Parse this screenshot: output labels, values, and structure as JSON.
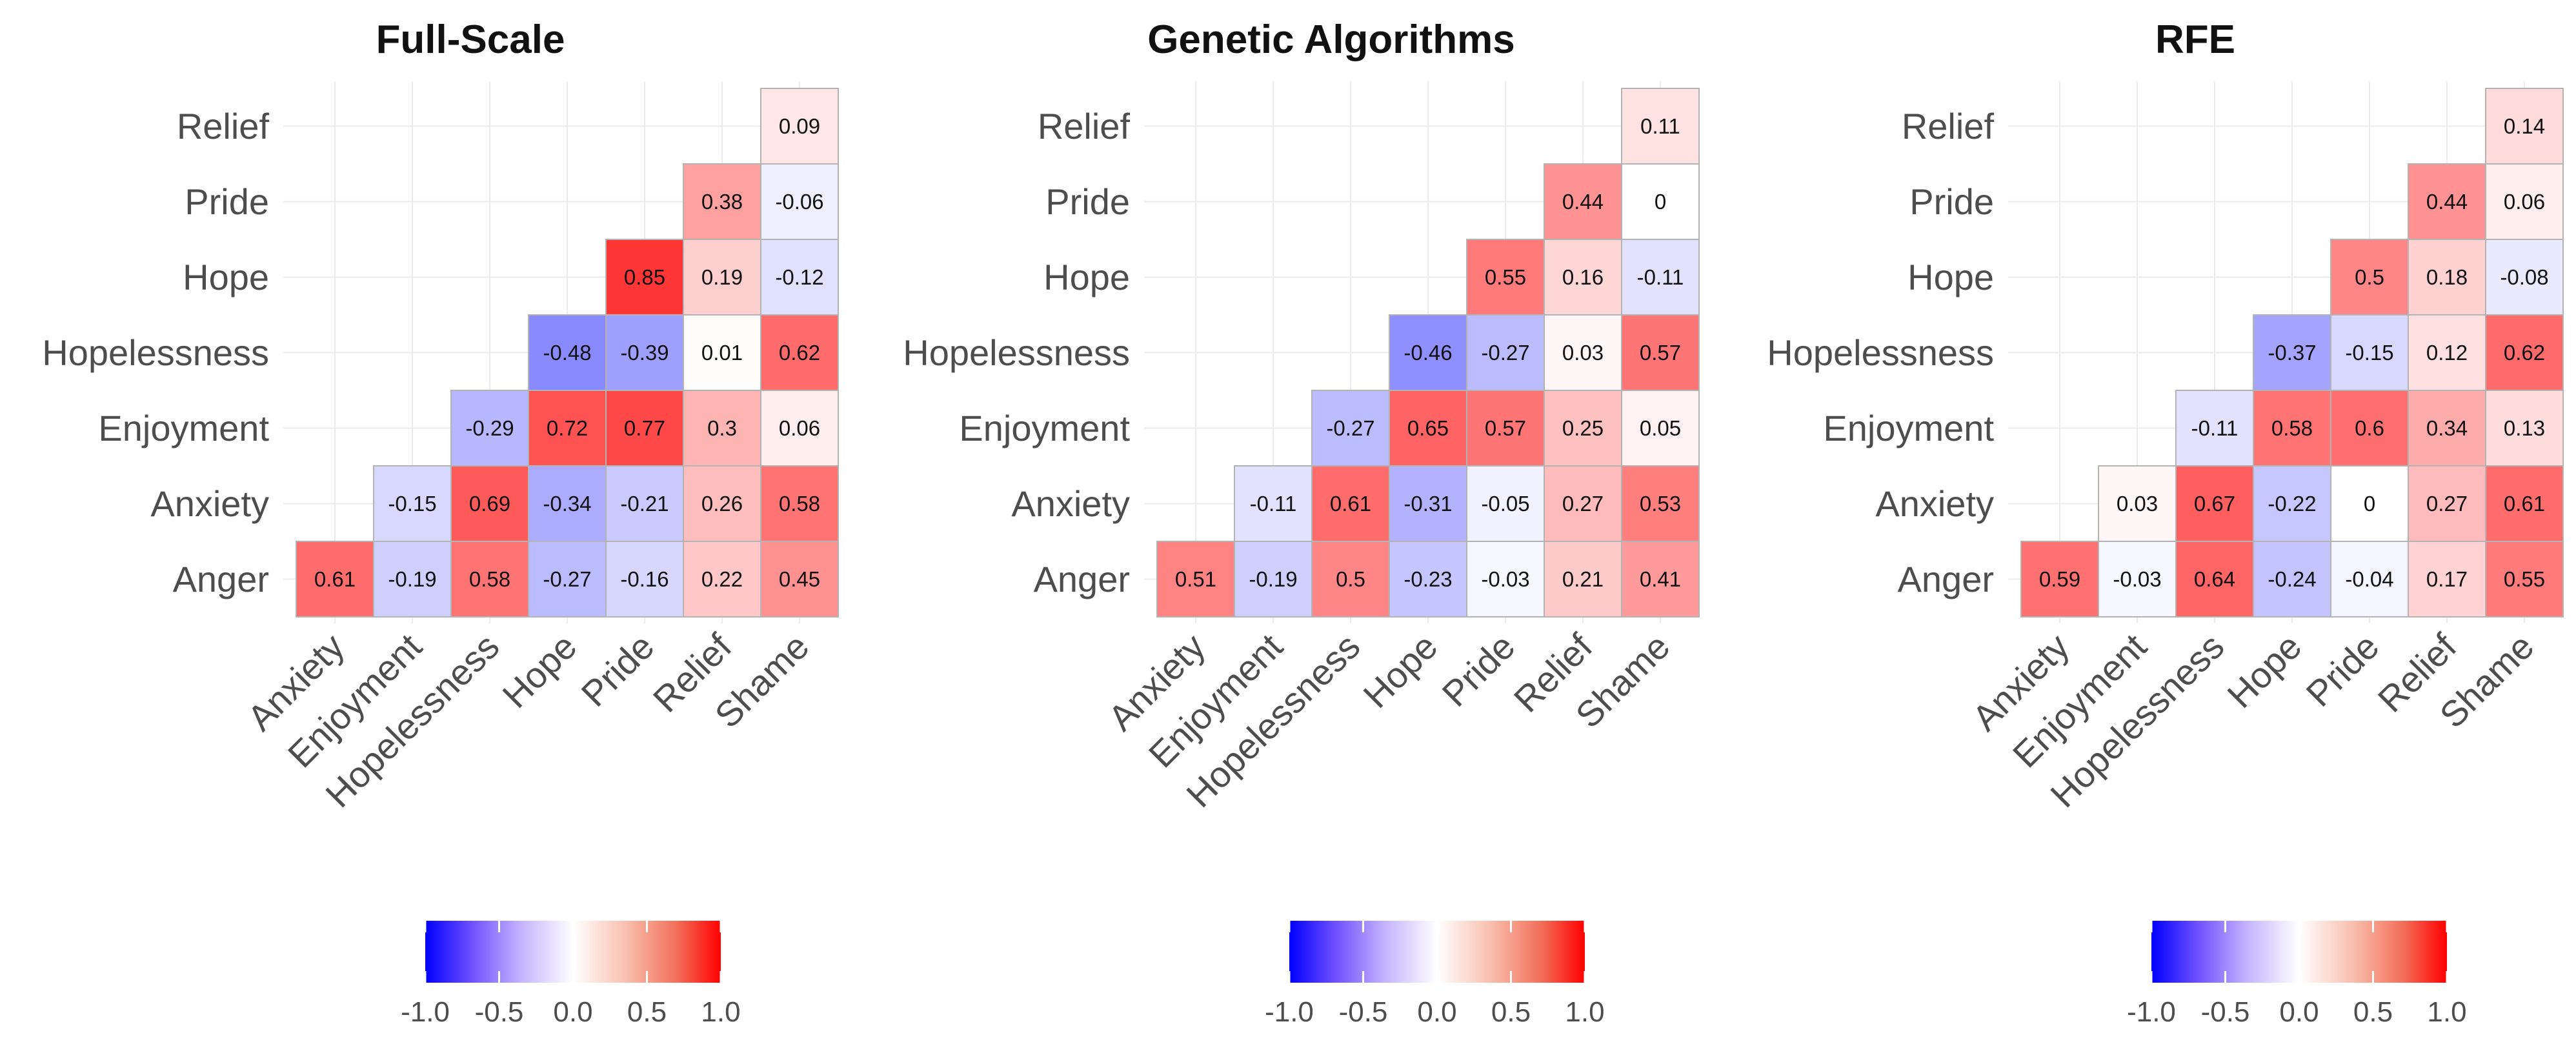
{
  "colors": {
    "low": "#0000ff",
    "mid": "#ffffff",
    "high": "#ff0000",
    "border": "#b3b3b3",
    "grid": "#ebebeb"
  },
  "chart_data": [
    {
      "type": "heatmap",
      "title": "Full-Scale",
      "rows": [
        "Relief",
        "Pride",
        "Hope",
        "Hopelessness",
        "Enjoyment",
        "Anxiety",
        "Anger"
      ],
      "columns": [
        "Anxiety",
        "Enjoyment",
        "Hopelessness",
        "Hope",
        "Pride",
        "Relief",
        "Shame"
      ],
      "values": [
        [
          null,
          null,
          null,
          null,
          null,
          null,
          0.09
        ],
        [
          null,
          null,
          null,
          null,
          null,
          0.38,
          -0.06
        ],
        [
          null,
          null,
          null,
          null,
          0.85,
          0.19,
          -0.12
        ],
        [
          null,
          null,
          null,
          -0.48,
          -0.39,
          0.01,
          0.62
        ],
        [
          null,
          null,
          -0.29,
          0.72,
          0.77,
          0.3,
          0.06
        ],
        [
          null,
          -0.15,
          0.69,
          -0.34,
          -0.21,
          0.26,
          0.58
        ],
        [
          0.61,
          -0.19,
          0.58,
          -0.27,
          -0.16,
          0.22,
          0.45
        ]
      ],
      "legend": {
        "position": "bottom",
        "range": [
          -1.0,
          1.0
        ],
        "ticks": [
          "-1.0",
          "-0.5",
          "0.0",
          "0.5",
          "1.0"
        ]
      }
    },
    {
      "type": "heatmap",
      "title": "Genetic Algorithms",
      "rows": [
        "Relief",
        "Pride",
        "Hope",
        "Hopelessness",
        "Enjoyment",
        "Anxiety",
        "Anger"
      ],
      "columns": [
        "Anxiety",
        "Enjoyment",
        "Hopelessness",
        "Hope",
        "Pride",
        "Relief",
        "Shame"
      ],
      "values": [
        [
          null,
          null,
          null,
          null,
          null,
          null,
          0.11
        ],
        [
          null,
          null,
          null,
          null,
          null,
          0.44,
          0
        ],
        [
          null,
          null,
          null,
          null,
          0.55,
          0.16,
          -0.11
        ],
        [
          null,
          null,
          null,
          -0.46,
          -0.27,
          0.03,
          0.57
        ],
        [
          null,
          null,
          -0.27,
          0.65,
          0.57,
          0.25,
          0.05
        ],
        [
          null,
          -0.11,
          0.61,
          -0.31,
          -0.05,
          0.27,
          0.53
        ],
        [
          0.51,
          -0.19,
          0.5,
          -0.23,
          -0.03,
          0.21,
          0.41
        ]
      ],
      "legend": {
        "position": "bottom",
        "range": [
          -1.0,
          1.0
        ],
        "ticks": [
          "-1.0",
          "-0.5",
          "0.0",
          "0.5",
          "1.0"
        ]
      }
    },
    {
      "type": "heatmap",
      "title": "RFE",
      "rows": [
        "Relief",
        "Pride",
        "Hope",
        "Hopelessness",
        "Enjoyment",
        "Anxiety",
        "Anger"
      ],
      "columns": [
        "Anxiety",
        "Enjoyment",
        "Hopelessness",
        "Hope",
        "Pride",
        "Relief",
        "Shame"
      ],
      "values": [
        [
          null,
          null,
          null,
          null,
          null,
          null,
          0.14
        ],
        [
          null,
          null,
          null,
          null,
          null,
          0.44,
          0.06
        ],
        [
          null,
          null,
          null,
          null,
          0.5,
          0.18,
          -0.08
        ],
        [
          null,
          null,
          null,
          -0.37,
          -0.15,
          0.12,
          0.62
        ],
        [
          null,
          null,
          -0.11,
          0.58,
          0.6,
          0.34,
          0.13
        ],
        [
          null,
          0.03,
          0.67,
          -0.22,
          0,
          0.27,
          0.61
        ],
        [
          0.59,
          -0.03,
          0.64,
          -0.24,
          -0.04,
          0.17,
          0.55
        ]
      ],
      "legend": {
        "position": "bottom",
        "range": [
          -1.0,
          1.0
        ],
        "ticks": [
          "-1.0",
          "-0.5",
          "0.0",
          "0.5",
          "1.0"
        ]
      }
    }
  ]
}
